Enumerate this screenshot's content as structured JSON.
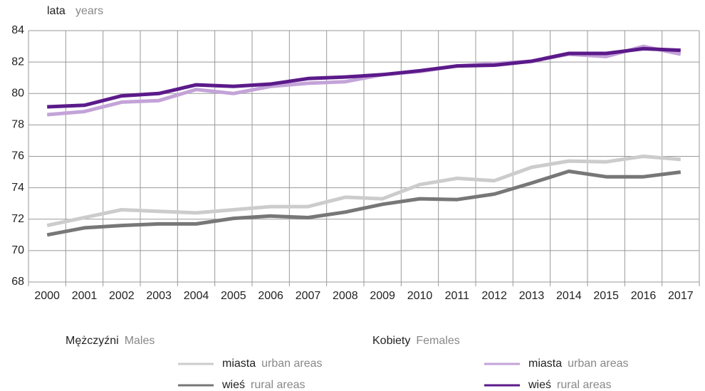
{
  "chart_data": {
    "type": "line",
    "y_label": "lata",
    "y_label_en": "years",
    "categories": [
      "2000",
      "2001",
      "2002",
      "2003",
      "2004",
      "2005",
      "2006",
      "2007",
      "2008",
      "2009",
      "2010",
      "2011",
      "2012",
      "2013",
      "2014",
      "2015",
      "2016",
      "2017"
    ],
    "legend_groups": [
      {
        "title": "Mężczyźni",
        "title_en": "Males"
      },
      {
        "title": "Kobiety",
        "title_en": "Females"
      }
    ],
    "series": [
      {
        "name": "miasta",
        "name_en": "urban areas",
        "group": 0,
        "color": "#cccccc",
        "values": [
          71.6,
          72.1,
          72.6,
          72.5,
          72.4,
          72.6,
          72.8,
          72.8,
          73.4,
          73.3,
          74.2,
          74.6,
          74.45,
          75.3,
          75.7,
          75.65,
          76.0,
          75.8
        ]
      },
      {
        "name": "wieś",
        "name_en": "rural areas",
        "group": 0,
        "color": "#777777",
        "values": [
          71.0,
          71.45,
          71.6,
          71.7,
          71.7,
          72.05,
          72.2,
          72.1,
          72.45,
          72.95,
          73.3,
          73.25,
          73.6,
          74.3,
          75.05,
          74.7,
          74.7,
          75.0
        ]
      },
      {
        "name": "miasta",
        "name_en": "urban areas",
        "group": 1,
        "color": "#c3a3d8",
        "values": [
          78.65,
          78.85,
          79.45,
          79.55,
          80.25,
          80.0,
          80.45,
          80.65,
          80.75,
          81.2,
          81.4,
          81.75,
          81.9,
          82.05,
          82.5,
          82.35,
          83.0,
          82.5
        ]
      },
      {
        "name": "wieś",
        "name_en": "rural areas",
        "group": 1,
        "color": "#5b1a8a",
        "values": [
          79.15,
          79.25,
          79.85,
          80.0,
          80.55,
          80.45,
          80.6,
          80.95,
          81.05,
          81.2,
          81.45,
          81.75,
          81.8,
          82.05,
          82.55,
          82.55,
          82.85,
          82.75
        ]
      }
    ],
    "ylim": [
      68,
      84
    ],
    "yticks": [
      68,
      70,
      72,
      74,
      76,
      78,
      80,
      82,
      84
    ],
    "grid": true
  }
}
